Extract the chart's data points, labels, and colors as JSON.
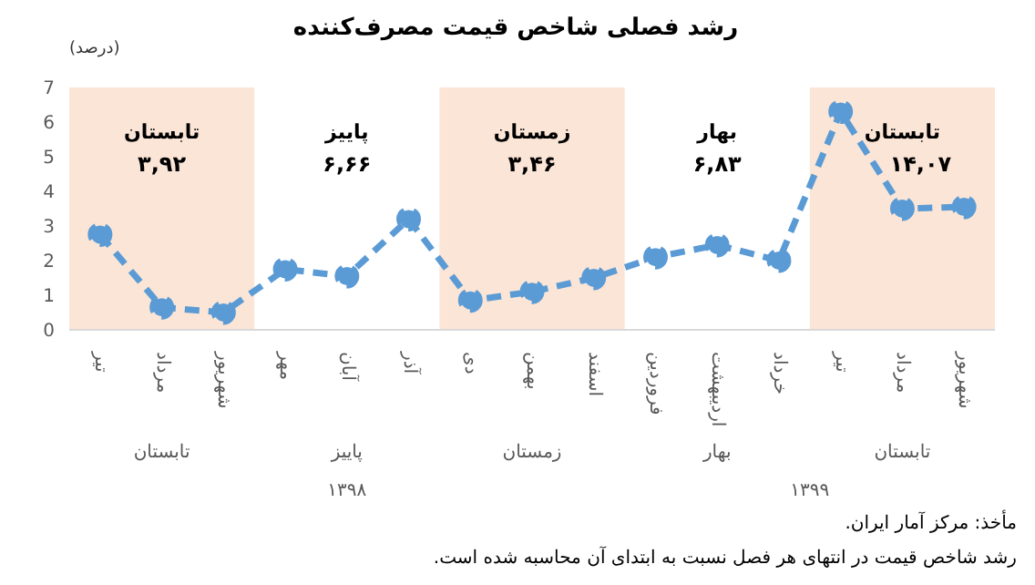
{
  "chart_data": {
    "type": "line",
    "title": "رشد فصلی شاخص قیمت مصرف‌کننده",
    "ylabel": "(درصد)",
    "categories": [
      "تیر",
      "مرداد",
      "شهریور",
      "مهر",
      "آبان",
      "آذر",
      "دی",
      "بهمن",
      "اسفند",
      "فروردین",
      "اردیبهشت",
      "خرداد",
      "تیر",
      "مرداد",
      "شهریور"
    ],
    "series": [
      {
        "color": "#5b9bd5",
        "values": [
          2.75,
          0.65,
          0.5,
          1.75,
          1.55,
          3.2,
          0.85,
          1.1,
          1.5,
          2.1,
          2.45,
          2.0,
          6.3,
          3.5,
          3.55
        ]
      }
    ],
    "ylim": [
      0,
      7
    ],
    "yticks": [
      0,
      1,
      2,
      3,
      4,
      5,
      6,
      7
    ],
    "grid": false,
    "legend": false,
    "marker": "circle",
    "line_style": "dashed",
    "annotations": [
      "تابستان",
      "پاییز",
      "زمستان",
      "بهار",
      "تابستان",
      "۳,۹۲",
      "۶,۶۶",
      "۳,۴۶",
      "۶,۸۳",
      "۱۴,۰۷",
      "تابستان",
      "پاییز",
      "زمستان",
      "بهار",
      "تابستان",
      "۱۳۹۸",
      "۱۳۹۹",
      "مأخذ: مرکز آمار ایران.",
      "رشد شاخص قیمت در انتهای هر فصل نسبت به ابتدای آن محاسبه شده است."
    ]
  }
}
